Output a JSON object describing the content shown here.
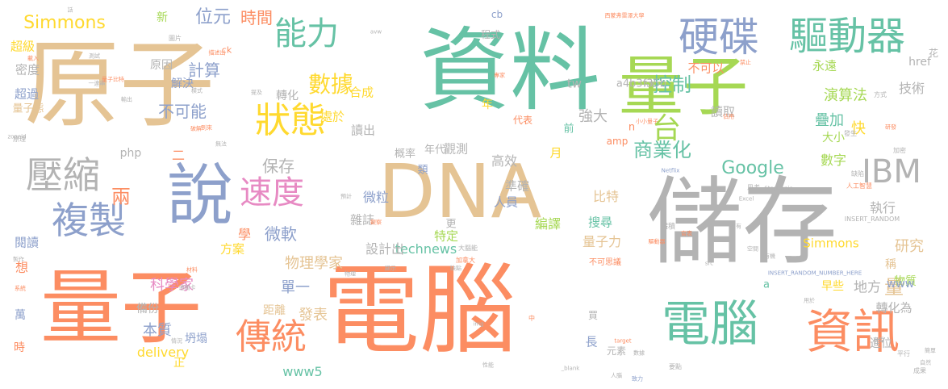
{
  "words": [
    {
      "text": "資料",
      "color": "#66c2a5"
    },
    {
      "text": "原子",
      "color": "#e5c494"
    },
    {
      "text": "量子",
      "color": "#a6d854"
    },
    {
      "text": "DNA",
      "color": "#e5c494"
    },
    {
      "text": "儲存",
      "color": "#b3b3b3"
    },
    {
      "text": "量子",
      "color": "#fc8d62"
    },
    {
      "text": "電腦",
      "color": "#fc8d62"
    },
    {
      "text": "說",
      "color": "#8da0cb"
    },
    {
      "text": "硬碟",
      "color": "#8da0cb"
    },
    {
      "text": "驅動器",
      "color": "#66c2a5"
    },
    {
      "text": "電腦",
      "color": "#66c2a5"
    },
    {
      "text": "資訊",
      "color": "#fc8d62"
    },
    {
      "text": "狀態",
      "color": "#ffd92f"
    },
    {
      "text": "壓縮",
      "color": "#b3b3b3"
    },
    {
      "text": "複製",
      "color": "#8da0cb"
    },
    {
      "text": "傳統",
      "color": "#fc8d62"
    },
    {
      "text": "速度",
      "color": "#e78ac3"
    },
    {
      "text": "能力",
      "color": "#66c2a5"
    },
    {
      "text": "IBM",
      "color": "#b3b3b3"
    },
    {
      "text": "台",
      "color": "#a6d854"
    },
    {
      "text": "數據",
      "color": "#ffd92f"
    },
    {
      "text": "控制",
      "color": "#66c2a5"
    },
    {
      "text": "商業化",
      "color": "#66c2a5"
    },
    {
      "text": "Google",
      "color": "#66c2a5"
    },
    {
      "text": "Simmons",
      "color": "#ffd92f"
    },
    {
      "text": "位元",
      "color": "#8da0cb"
    },
    {
      "text": "時間",
      "color": "#fc8d62"
    },
    {
      "text": "計算",
      "color": "#8da0cb"
    },
    {
      "text": "不可能",
      "color": "#8da0cb"
    },
    {
      "text": "保存",
      "color": "#b3b3b3"
    },
    {
      "text": "兩",
      "color": "#fc8d62"
    },
    {
      "text": "微軟",
      "color": "#8da0cb"
    },
    {
      "text": "物理學家",
      "color": "#e5c494"
    },
    {
      "text": "科學家",
      "color": "#e78ac3"
    },
    {
      "text": "單一",
      "color": "#8da0cb"
    },
    {
      "text": "發表",
      "color": "#e5c494"
    },
    {
      "text": "本質",
      "color": "#8da0cb"
    },
    {
      "text": "delivery",
      "color": "#ffd92f"
    },
    {
      "text": "www5",
      "color": "#66c2a5"
    },
    {
      "text": "technews",
      "color": "#66c2a5"
    },
    {
      "text": "設計出",
      "color": "#b3b3b3"
    },
    {
      "text": "量子力",
      "color": "#e5c494"
    },
    {
      "text": "研究",
      "color": "#e5c494"
    },
    {
      "text": "量",
      "color": "#e5c494"
    },
    {
      "text": "轉化為",
      "color": "#b3b3b3"
    },
    {
      "text": "演算法",
      "color": "#a6d854"
    },
    {
      "text": "疊加",
      "color": "#66c2a5"
    },
    {
      "text": "快",
      "color": "#ffd92f"
    },
    {
      "text": "數字",
      "color": "#a6d854"
    },
    {
      "text": "大小",
      "color": "#a6d854"
    },
    {
      "text": "執行",
      "color": "#b3b3b3"
    },
    {
      "text": "技術",
      "color": "#b3b3b3"
    },
    {
      "text": "比特",
      "color": "#e5c494"
    },
    {
      "text": "微粒",
      "color": "#8da0cb"
    },
    {
      "text": "強大",
      "color": "#b3b3b3"
    },
    {
      "text": "高效",
      "color": "#b3b3b3"
    },
    {
      "text": "準確",
      "color": "#b3b3b3"
    },
    {
      "text": "人員",
      "color": "#8da0cb"
    },
    {
      "text": "雜誌",
      "color": "#b3b3b3"
    },
    {
      "text": "搜尋",
      "color": "#66c2a5"
    },
    {
      "text": "編譯",
      "color": "#a6d854"
    },
    {
      "text": "讀取",
      "color": "#b3b3b3"
    },
    {
      "text": "不可以",
      "color": "#fc8d62"
    },
    {
      "text": "永遠",
      "color": "#a6d854"
    },
    {
      "text": "超級",
      "color": "#ffd92f"
    },
    {
      "text": "密度",
      "color": "#b3b3b3"
    },
    {
      "text": "超過",
      "color": "#8da0cb"
    },
    {
      "text": "量子態",
      "color": "#e5c494"
    },
    {
      "text": "閱讀",
      "color": "#8da0cb"
    },
    {
      "text": "方案",
      "color": "#ffd92f"
    },
    {
      "text": "處於",
      "color": "#ffd92f"
    },
    {
      "text": "合成",
      "color": "#ffd92f"
    },
    {
      "text": "讀出",
      "color": "#b3b3b3"
    },
    {
      "text": "轉化",
      "color": "#b3b3b3"
    },
    {
      "text": "解決",
      "color": "#8da0cb"
    },
    {
      "text": "新",
      "color": "#a6d854"
    },
    {
      "text": "原因",
      "color": "#b3b3b3"
    },
    {
      "text": "Simmons",
      "color": "#ffd92f"
    },
    {
      "text": "早些",
      "color": "#ffd92f"
    },
    {
      "text": "物質",
      "color": "#a6d854"
    },
    {
      "text": "進位",
      "color": "#b3b3b3"
    },
    {
      "text": "概率",
      "color": "#b3b3b3"
    },
    {
      "text": "年代",
      "color": "#b3b3b3"
    },
    {
      "text": "觀測",
      "color": "#b3b3b3"
    },
    {
      "text": "特定",
      "color": "#a6d854"
    },
    {
      "text": "距離",
      "color": "#e5c494"
    },
    {
      "text": "備份",
      "color": "#b3b3b3"
    },
    {
      "text": "坍塌",
      "color": "#8da0cb"
    },
    {
      "text": "地方",
      "color": "#b3b3b3"
    },
    {
      "text": "稱",
      "color": "#e5c494"
    },
    {
      "text": "www",
      "color": "#8da0cb"
    },
    {
      "text": "php",
      "color": "#b3b3b3"
    },
    {
      "text": "amp",
      "color": "#fc8d62"
    },
    {
      "text": "tw",
      "color": "#b3b3b3"
    },
    {
      "text": "cb",
      "color": "#8da0cb"
    },
    {
      "text": "a4b3f35b",
      "color": "#b3b3b3"
    },
    {
      "text": "月",
      "color": "#ffd92f"
    },
    {
      "text": "長",
      "color": "#8da0cb"
    },
    {
      "text": "學",
      "color": "#fc8d62"
    },
    {
      "text": "想",
      "color": "#fc8d62"
    },
    {
      "text": "時",
      "color": "#fc8d62"
    },
    {
      "text": "萬",
      "color": "#8da0cb"
    },
    {
      "text": "二",
      "color": "#fc8d62"
    },
    {
      "text": "正",
      "color": "#ffd92f"
    },
    {
      "text": "年",
      "color": "#ffd92f"
    },
    {
      "text": "前",
      "color": "#66c2a5"
    },
    {
      "text": "類",
      "color": "#8da0cb"
    },
    {
      "text": "更",
      "color": "#b3b3b3"
    },
    {
      "text": "n",
      "color": "#fc8d62"
    },
    {
      "text": "ck",
      "color": "#fc8d62"
    },
    {
      "text": "a",
      "color": "#66c2a5"
    },
    {
      "text": "href",
      "color": "#b3b3b3"
    },
    {
      "text": "花",
      "color": "#b3b3b3"
    },
    {
      "text": "話",
      "color": "#b3b3b3"
    },
    {
      "text": "INSERT_RANDOM",
      "color": "#b3b3b3"
    },
    {
      "text": "INSERT_RANDOM_NUMBER_HERE",
      "color": "#8da0cb"
    },
    {
      "text": "Netflix",
      "color": "#8da0cb"
    },
    {
      "text": "Stephanie",
      "color": "#b3b3b3"
    },
    {
      "text": "zoneid",
      "color": "#b3b3b3"
    },
    {
      "text": "Excel",
      "color": "#b3b3b3"
    },
    {
      "text": "_blank",
      "color": "#b3b3b3"
    },
    {
      "text": "img",
      "color": "#b3b3b3"
    },
    {
      "text": "target",
      "color": "#fc8d62"
    },
    {
      "text": "src",
      "color": "#b3b3b3"
    },
    {
      "text": "avw",
      "color": "#b3b3b3"
    },
    {
      "text": "程式",
      "color": "#b3b3b3"
    },
    {
      "text": "提及",
      "color": "#b3b3b3"
    },
    {
      "text": "代表",
      "color": "#fc8d62"
    },
    {
      "text": "發生",
      "color": "#b3b3b3"
    },
    {
      "text": "缺陷",
      "color": "#b3b3b3"
    },
    {
      "text": "思考",
      "color": "#b3b3b3"
    },
    {
      "text": "方式",
      "color": "#b3b3b3"
    },
    {
      "text": "人工智慧",
      "color": "#fc8d62"
    },
    {
      "text": "加密",
      "color": "#b3b3b3"
    },
    {
      "text": "不可思議",
      "color": "#fc8d62"
    },
    {
      "text": "致力",
      "color": "#8da0cb"
    },
    {
      "text": "成果",
      "color": "#b3b3b3"
    },
    {
      "text": "自然",
      "color": "#b3b3b3"
    },
    {
      "text": "簡單",
      "color": "#b3b3b3"
    },
    {
      "text": "平行",
      "color": "#b3b3b3"
    },
    {
      "text": "用於",
      "color": "#b3b3b3"
    },
    {
      "text": "要點",
      "color": "#b3b3b3"
    },
    {
      "text": "性能",
      "color": "#b3b3b3"
    },
    {
      "text": "元素",
      "color": "#b3b3b3"
    },
    {
      "text": "買",
      "color": "#b3b3b3"
    },
    {
      "text": "中",
      "color": "#fc8d62"
    },
    {
      "text": "加拿大",
      "color": "#fc8d62"
    },
    {
      "text": "大腦能",
      "color": "#b3b3b3"
    },
    {
      "text": "先進",
      "color": "#b3b3b3"
    },
    {
      "text": "擁有",
      "color": "#b3b3b3"
    },
    {
      "text": "空間",
      "color": "#b3b3b3"
    },
    {
      "text": "有機",
      "color": "#b3b3b3"
    },
    {
      "text": "製作",
      "color": "#b3b3b3"
    },
    {
      "text": "系統",
      "color": "#fc8d62"
    },
    {
      "text": "情況",
      "color": "#b3b3b3"
    },
    {
      "text": "原理",
      "color": "#b3b3b3"
    },
    {
      "text": "載入",
      "color": "#fc8d62"
    },
    {
      "text": "物理",
      "color": "#b3b3b3"
    },
    {
      "text": "模式",
      "color": "#b3b3b3"
    },
    {
      "text": "一連串",
      "color": "#b3b3b3"
    },
    {
      "text": "量子比特",
      "color": "#fc8d62"
    },
    {
      "text": "西蒙弗雷澤大學",
      "color": "#fc8d62"
    },
    {
      "text": "禁止",
      "color": "#fc8d62"
    },
    {
      "text": "專家",
      "color": "#fc8d62"
    },
    {
      "text": "輸出",
      "color": "#b3b3b3"
    },
    {
      "text": "圖片",
      "color": "#b3b3b3"
    },
    {
      "text": "測試",
      "color": "#b3b3b3"
    },
    {
      "text": "描述出",
      "color": "#fc8d62"
    },
    {
      "text": "到來",
      "color": "#fc8d62"
    },
    {
      "text": "破解",
      "color": "#fc8d62"
    },
    {
      "text": "無法",
      "color": "#b3b3b3"
    },
    {
      "text": "預計",
      "color": "#b3b3b3"
    },
    {
      "text": "觀察",
      "color": "#fc8d62"
    },
    {
      "text": "缺點",
      "color": "#b3b3b3"
    },
    {
      "text": "顯示",
      "color": "#b3b3b3"
    },
    {
      "text": "材料",
      "color": "#fc8d62"
    },
    {
      "text": "通關卡",
      "color": "#b3b3b3"
    },
    {
      "text": "享受",
      "color": "#b3b3b3"
    },
    {
      "text": "驅動器",
      "color": "#fc8d62"
    },
    {
      "text": "體積",
      "color": "#b3b3b3"
    },
    {
      "text": "官表",
      "color": "#fc8d62"
    },
    {
      "text": "人腦",
      "color": "#b3b3b3"
    },
    {
      "text": "數據",
      "color": "#b3b3b3"
    },
    {
      "text": "小小量子",
      "color": "#fc8d62"
    },
    {
      "text": "研發",
      "color": "#fc8d62"
    },
    {
      "text": "佔用",
      "color": "#fc8d62"
    },
    {
      "text": "確定",
      "color": "#b3b3b3"
    },
    {
      "text": "劃時代",
      "color": "#b3b3b3"
    },
    {
      "text": "新科技",
      "color": "#b3b3b3"
    },
    {
      "text": "工作",
      "color": "#fc8d62"
    },
    {
      "text": "包括",
      "color": "#b3b3b3"
    }
  ]
}
